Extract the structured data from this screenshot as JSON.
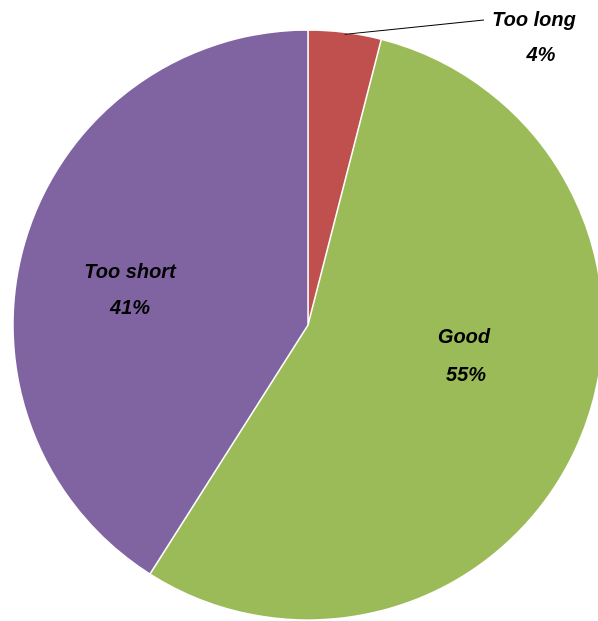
{
  "chart_data": {
    "type": "pie",
    "title": "",
    "slices": [
      {
        "label": "Too long",
        "value": 4,
        "percent_label": "4%",
        "color": "#C0504D"
      },
      {
        "label": "Good",
        "value": 55,
        "percent_label": "55%",
        "color": "#9BBB59"
      },
      {
        "label": "Too short",
        "value": 41,
        "percent_label": "41%",
        "color": "#8064A2"
      }
    ],
    "start_angle_deg": 0,
    "direction": "clockwise",
    "slice_border_color": "#FFFFFF",
    "legend": "none"
  }
}
